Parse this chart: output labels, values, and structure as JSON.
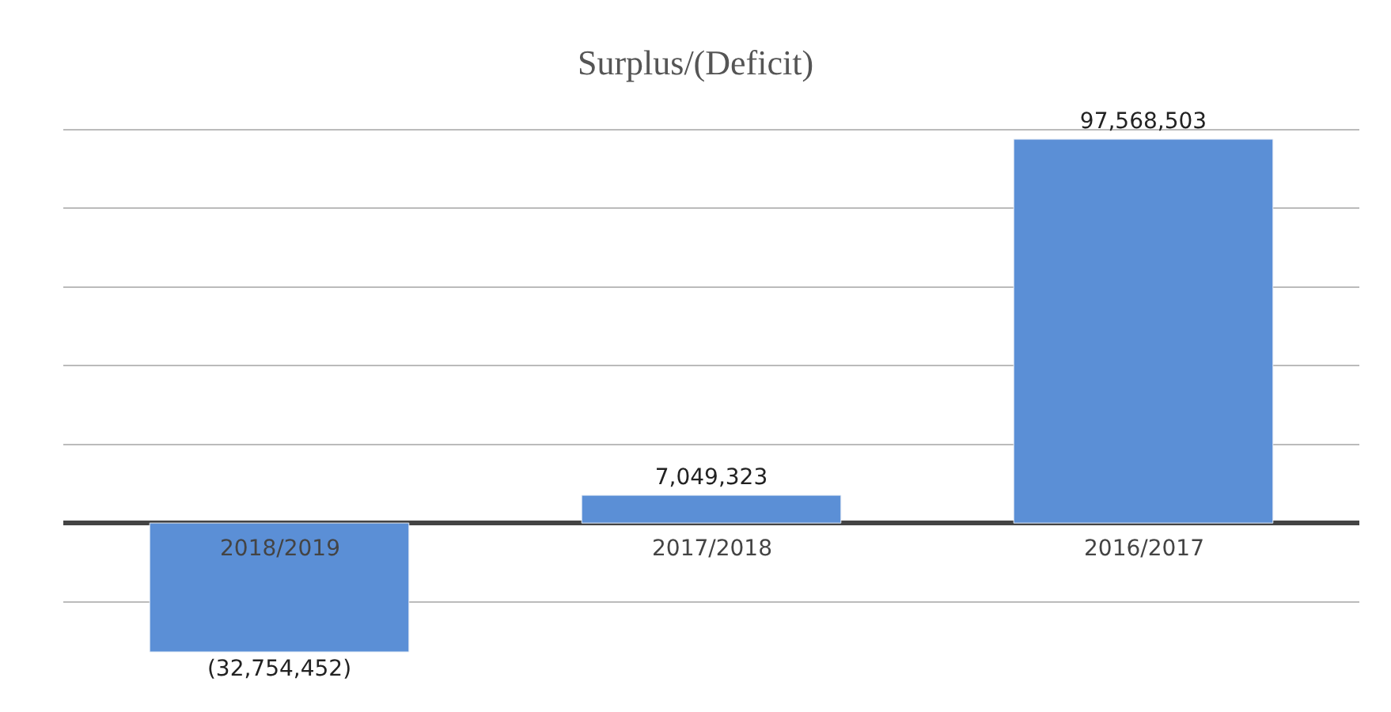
{
  "chart_data": {
    "type": "bar",
    "title": "Surplus/(Deficit)",
    "categories": [
      "2018/2019",
      "2017/2018",
      "2016/2017"
    ],
    "values": [
      -32754452,
      7049323,
      97568503
    ],
    "value_labels": [
      "(32,754,452)",
      "7,049,323",
      "97,568,503"
    ],
    "color": "#5b8fd6",
    "grid": true,
    "tick_labels": false
  }
}
